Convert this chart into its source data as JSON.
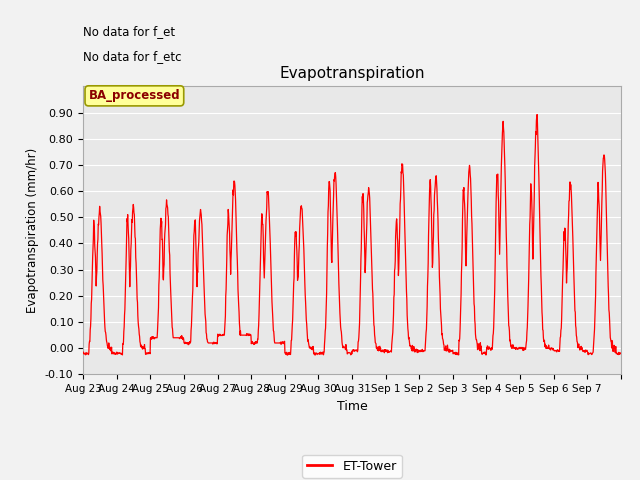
{
  "title": "Evapotranspiration",
  "xlabel": "Time",
  "ylabel": "Evapotranspiration (mm/hr)",
  "ylim": [
    -0.1,
    1.0
  ],
  "yticks": [
    -0.1,
    0.0,
    0.1,
    0.2,
    0.3,
    0.4,
    0.5,
    0.6,
    0.7,
    0.8,
    0.9
  ],
  "line_color": "red",
  "line_width": 0.9,
  "fig_bg": "#f2f2f2",
  "plot_bg": "#e8e8e8",
  "annotation_text1": "No data for f_et",
  "annotation_text2": "No data for f_etc",
  "box_label": "BA_processed",
  "legend_label": "ET-Tower",
  "x_tick_labels": [
    "Aug 23",
    "Aug 24",
    "Aug 25",
    "Aug 26",
    "Aug 27",
    "Aug 28",
    "Aug 29",
    "Aug 30",
    "Aug 31",
    "Sep 1",
    "Sep 2",
    "Sep 3",
    "Sep 4",
    "Sep 5",
    "Sep 6",
    "Sep 7"
  ],
  "day_peaks": [
    0.53,
    0.54,
    0.56,
    0.53,
    0.64,
    0.6,
    0.55,
    0.67,
    0.61,
    0.7,
    0.65,
    0.7,
    0.85,
    0.88,
    0.63,
    0.75
  ],
  "day_secondary_peaks": [
    0.46,
    0.49,
    0.5,
    0.48,
    0.53,
    0.51,
    0.45,
    0.65,
    0.58,
    0.48,
    0.63,
    0.61,
    0.67,
    0.6,
    0.46,
    0.62
  ],
  "day_mins": [
    -0.02,
    -0.02,
    0.04,
    0.02,
    0.05,
    0.02,
    -0.02,
    -0.02,
    -0.01,
    -0.01,
    -0.01,
    -0.02,
    0.0,
    0.0,
    -0.01,
    -0.02
  ]
}
